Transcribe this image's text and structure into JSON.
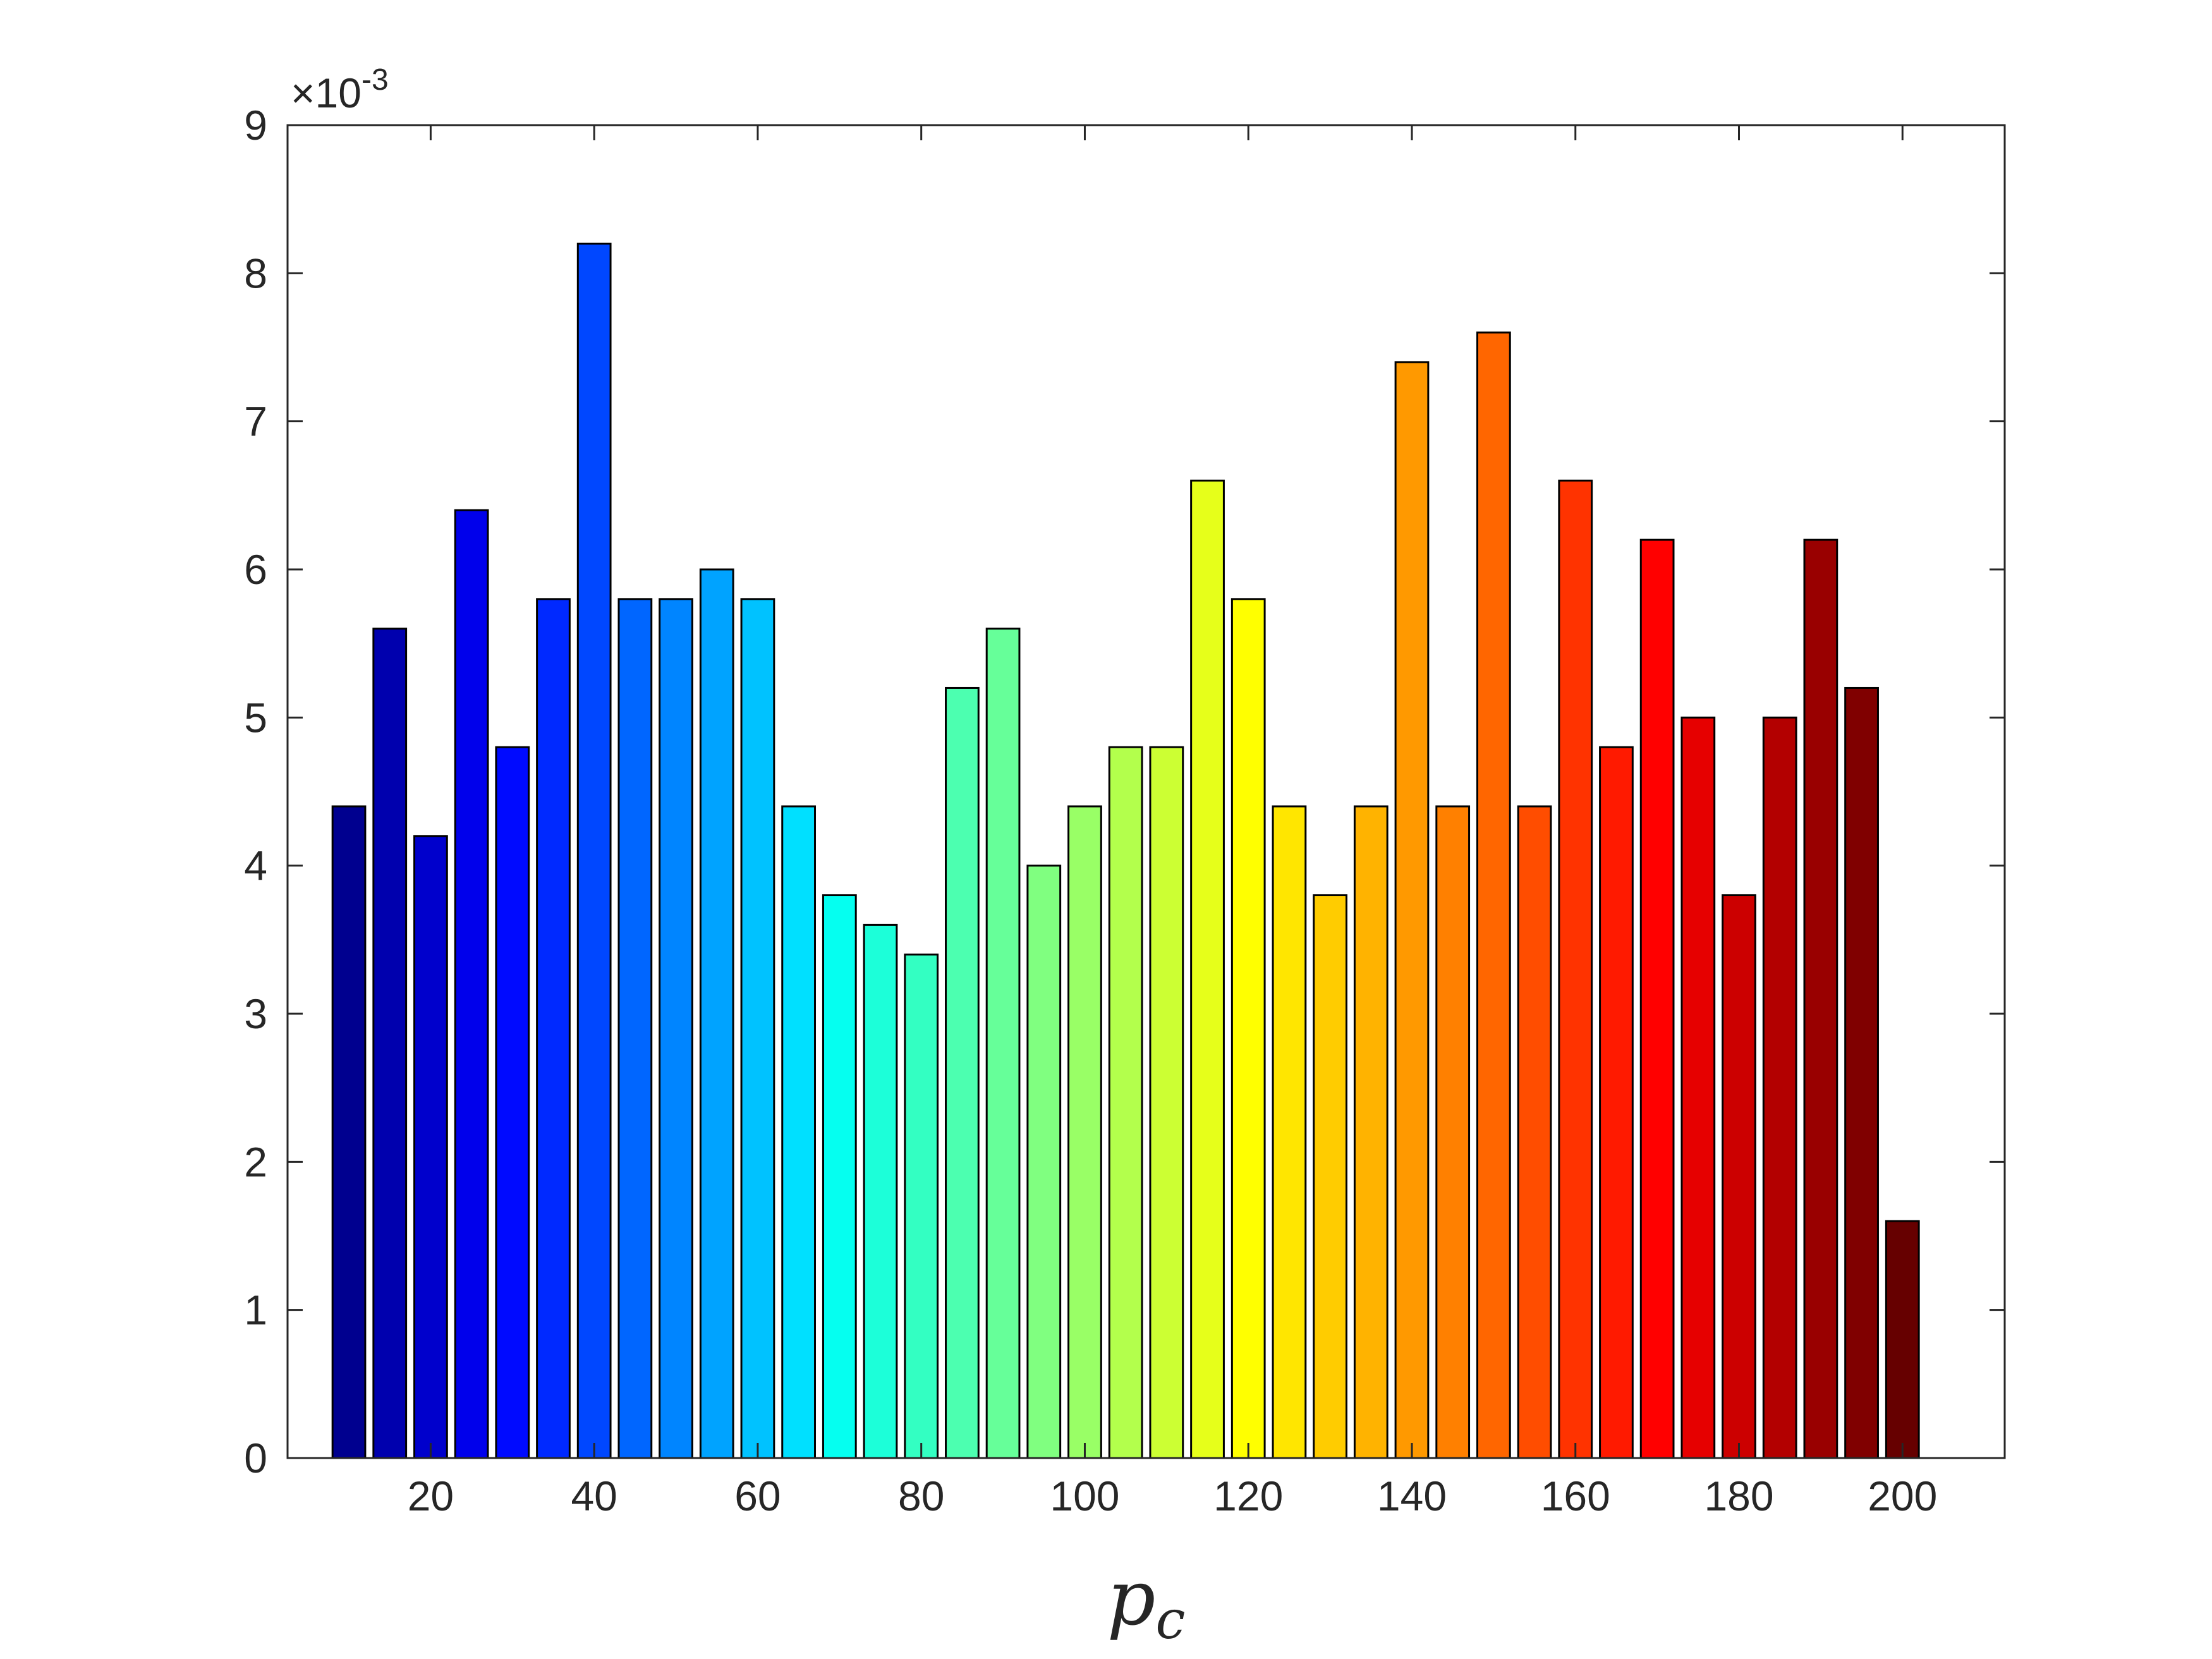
{
  "chart_data": {
    "type": "bar",
    "x": [
      10,
      15,
      20,
      25,
      30,
      35,
      40,
      45,
      50,
      55,
      60,
      65,
      70,
      75,
      80,
      85,
      90,
      95,
      100,
      105,
      110,
      115,
      120,
      125,
      130,
      135,
      140,
      145,
      150,
      155,
      160,
      165,
      170,
      175,
      180,
      185,
      190,
      195,
      200
    ],
    "values": [
      0.0044,
      0.0056,
      0.0042,
      0.0064,
      0.0048,
      0.0058,
      0.0082,
      0.0058,
      0.0058,
      0.006,
      0.0058,
      0.0044,
      0.0038,
      0.0036,
      0.0034,
      0.0052,
      0.0056,
      0.004,
      0.0044,
      0.0048,
      0.0048,
      0.0066,
      0.0058,
      0.0044,
      0.0038,
      0.0044,
      0.0074,
      0.0044,
      0.0076,
      0.0044,
      0.0066,
      0.0048,
      0.0062,
      0.005,
      0.0038,
      0.005,
      0.0062,
      0.0052,
      0.0016
    ],
    "colors": [
      "#00008f",
      "#0000ae",
      "#0000cc",
      "#0000eb",
      "#000aff",
      "#0029ff",
      "#0047ff",
      "#0066ff",
      "#0085ff",
      "#00a3ff",
      "#00c2ff",
      "#00e0ff",
      "#05fff0",
      "#1cffd9",
      "#33ffc2",
      "#4cffb0",
      "#66ff99",
      "#80ff80",
      "#99ff66",
      "#b3ff4c",
      "#ccff33",
      "#e6ff1a",
      "#ffff00",
      "#ffe600",
      "#ffcc00",
      "#ffb300",
      "#ff9900",
      "#ff8000",
      "#ff6600",
      "#ff4d00",
      "#ff3300",
      "#ff1a00",
      "#ff0000",
      "#e60000",
      "#cc0000",
      "#b30000",
      "#990000",
      "#800000",
      "#660000"
    ],
    "xlim": [
      2.5,
      212.5
    ],
    "ylim": [
      0,
      0.009
    ],
    "y_scale_exponent": "×10-3",
    "y_ticks": [
      0,
      1,
      2,
      3,
      4,
      5,
      6,
      7,
      8,
      9
    ],
    "y_tick_labels": [
      "0",
      "1",
      "2",
      "3",
      "4",
      "5",
      "6",
      "7",
      "8",
      "9"
    ],
    "x_ticks": [
      20,
      40,
      60,
      80,
      100,
      120,
      140,
      160,
      180,
      200
    ],
    "x_tick_labels": [
      "20",
      "40",
      "60",
      "80",
      "100",
      "120",
      "140",
      "160",
      "180",
      "200"
    ],
    "xlabel": "pc",
    "ylabel": "",
    "title": "",
    "grid": false,
    "legend": "none"
  }
}
